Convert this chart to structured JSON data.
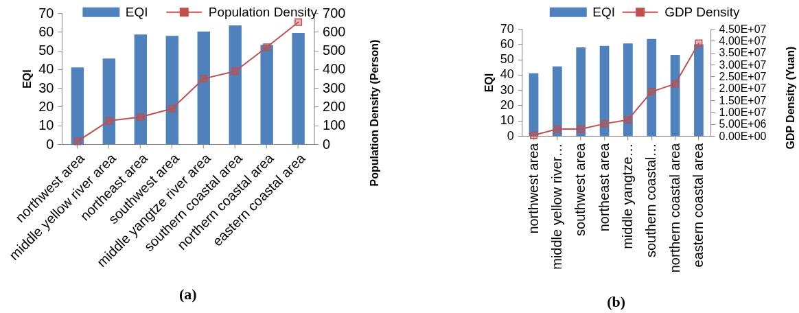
{
  "chart_data": [
    {
      "type": "bar",
      "categories": [
        "northwest area",
        "middle yellow river area",
        "northeast area",
        "southwest area",
        "middle yangtze river area",
        "southern coastal area",
        "northern coastal area",
        "eastern coastal area"
      ],
      "series": [
        {
          "name": "EQI",
          "color": "#4f81bd",
          "values": [
            41,
            45.8,
            58.6,
            57.9,
            60.2,
            63.5,
            53,
            59.4
          ]
        },
        {
          "name": "Population Density",
          "type": "line",
          "axis": "y2",
          "color": "#c0504d",
          "values": [
            15,
            125,
            145,
            190,
            350,
            390,
            518,
            652
          ]
        }
      ],
      "ylabel": "EQI",
      "y2label": "Population Density (Person)",
      "ylim": [
        0,
        70
      ],
      "yticks": [
        0,
        10,
        20,
        30,
        40,
        50,
        60,
        70
      ],
      "y2lim": [
        0,
        700
      ],
      "y2ticks": [
        0,
        100,
        200,
        300,
        400,
        500,
        600,
        700
      ],
      "marker": "square",
      "line_style": "solid",
      "legend": "top",
      "grid": false,
      "annotations": [
        "(a)"
      ]
    },
    {
      "type": "bar",
      "categories": [
        "northwest area",
        "middle yellow river…",
        "southwest area",
        "northeast area",
        "middle yangtze…",
        "southern coastal…",
        "northern coastal area",
        "eastern coastal area"
      ],
      "series": [
        {
          "name": "EQI",
          "color": "#4f81bd",
          "values": [
            41,
            45.5,
            58,
            59,
            60.5,
            63.5,
            53,
            60
          ]
        },
        {
          "name": "GDP Density",
          "type": "line",
          "axis": "y2",
          "color": "#c0504d",
          "values": [
            300000,
            2900000,
            2900000,
            5100000,
            6800000,
            18600000,
            21900000,
            39000000
          ]
        }
      ],
      "ylabel": "EQI",
      "y2label": "GDP Density (Yuan)",
      "ylim": [
        0,
        70
      ],
      "yticks": [
        0,
        10,
        20,
        30,
        40,
        50,
        60,
        70
      ],
      "y2lim": [
        0,
        45000000
      ],
      "y2ticks": [
        {
          "value": 0,
          "label": "0.00E+00"
        },
        {
          "value": 5000000,
          "label": "5.00E+06"
        },
        {
          "value": 10000000,
          "label": "1.00E+07"
        },
        {
          "value": 15000000,
          "label": "1.50E+07"
        },
        {
          "value": 20000000,
          "label": "2.00E+07"
        },
        {
          "value": 25000000,
          "label": "2.50E+07"
        },
        {
          "value": 30000000,
          "label": "3.00E+07"
        },
        {
          "value": 35000000,
          "label": "3.50E+07"
        },
        {
          "value": 40000000,
          "label": "4.00E+07"
        },
        {
          "value": 45000000,
          "label": "4.50E+07"
        }
      ],
      "marker": "square",
      "line_style": "solid",
      "legend": "top",
      "grid": false,
      "annotations": [
        "(b)"
      ]
    }
  ]
}
